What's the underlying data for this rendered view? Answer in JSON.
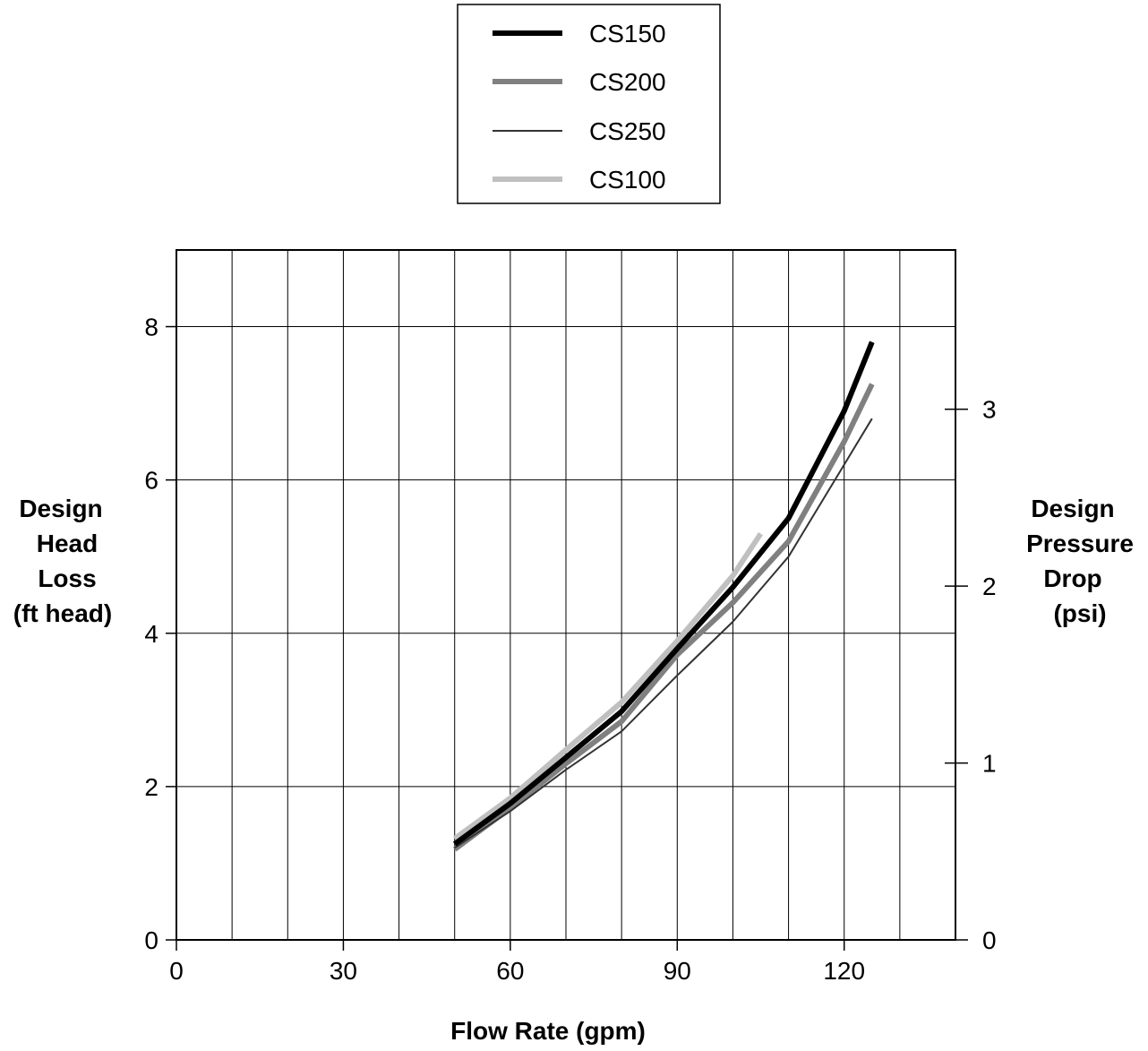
{
  "chart_data": {
    "type": "line",
    "title": "",
    "xlabel": "Flow Rate (gpm)",
    "ylabel_left": [
      "Design",
      "Head",
      "Loss",
      "(ft head)"
    ],
    "ylabel_right": [
      "Design",
      "Pressure",
      "Drop",
      "(psi)"
    ],
    "xlim": [
      0,
      140
    ],
    "ylim_left": [
      0,
      9
    ],
    "ylim_right": [
      0,
      3.9
    ],
    "x_ticks": [
      0,
      30,
      60,
      90,
      120
    ],
    "x_ticklabels": [
      "0",
      "30",
      "60",
      "90",
      "120"
    ],
    "x_gridlines": [
      10,
      20,
      30,
      40,
      50,
      60,
      70,
      80,
      90,
      100,
      110,
      120,
      130
    ],
    "y_left_ticks": [
      0,
      2,
      4,
      6,
      8
    ],
    "y_left_ticklabels": [
      "0",
      "2",
      "4",
      "6",
      "8"
    ],
    "y_right_ticks": [
      0,
      1,
      2,
      3
    ],
    "y_right_ticklabels": [
      "0",
      "1",
      "2",
      "3"
    ],
    "grid": true,
    "legend_position": "top-center",
    "series": [
      {
        "name": "CS150",
        "color": "#000000",
        "width": 6,
        "x": [
          50,
          60,
          70,
          80,
          90,
          100,
          110,
          120,
          125
        ],
        "y": [
          1.25,
          1.78,
          2.38,
          2.98,
          3.8,
          4.6,
          5.5,
          6.9,
          7.8
        ]
      },
      {
        "name": "CS200",
        "color": "#808080",
        "width": 6,
        "x": [
          50,
          60,
          70,
          80,
          90,
          100,
          110,
          120,
          125
        ],
        "y": [
          1.18,
          1.72,
          2.3,
          2.85,
          3.72,
          4.4,
          5.2,
          6.5,
          7.25
        ]
      },
      {
        "name": "CS250",
        "color": "#333333",
        "width": 2,
        "x": [
          50,
          60,
          70,
          80,
          90,
          100,
          110,
          120,
          125
        ],
        "y": [
          1.2,
          1.68,
          2.22,
          2.72,
          3.45,
          4.15,
          5.0,
          6.2,
          6.8
        ]
      },
      {
        "name": "CS100",
        "color": "#c0c0c0",
        "width": 6,
        "x": [
          50,
          60,
          70,
          80,
          90,
          100,
          105
        ],
        "y": [
          1.32,
          1.85,
          2.48,
          3.1,
          3.9,
          4.75,
          5.3
        ]
      }
    ]
  }
}
